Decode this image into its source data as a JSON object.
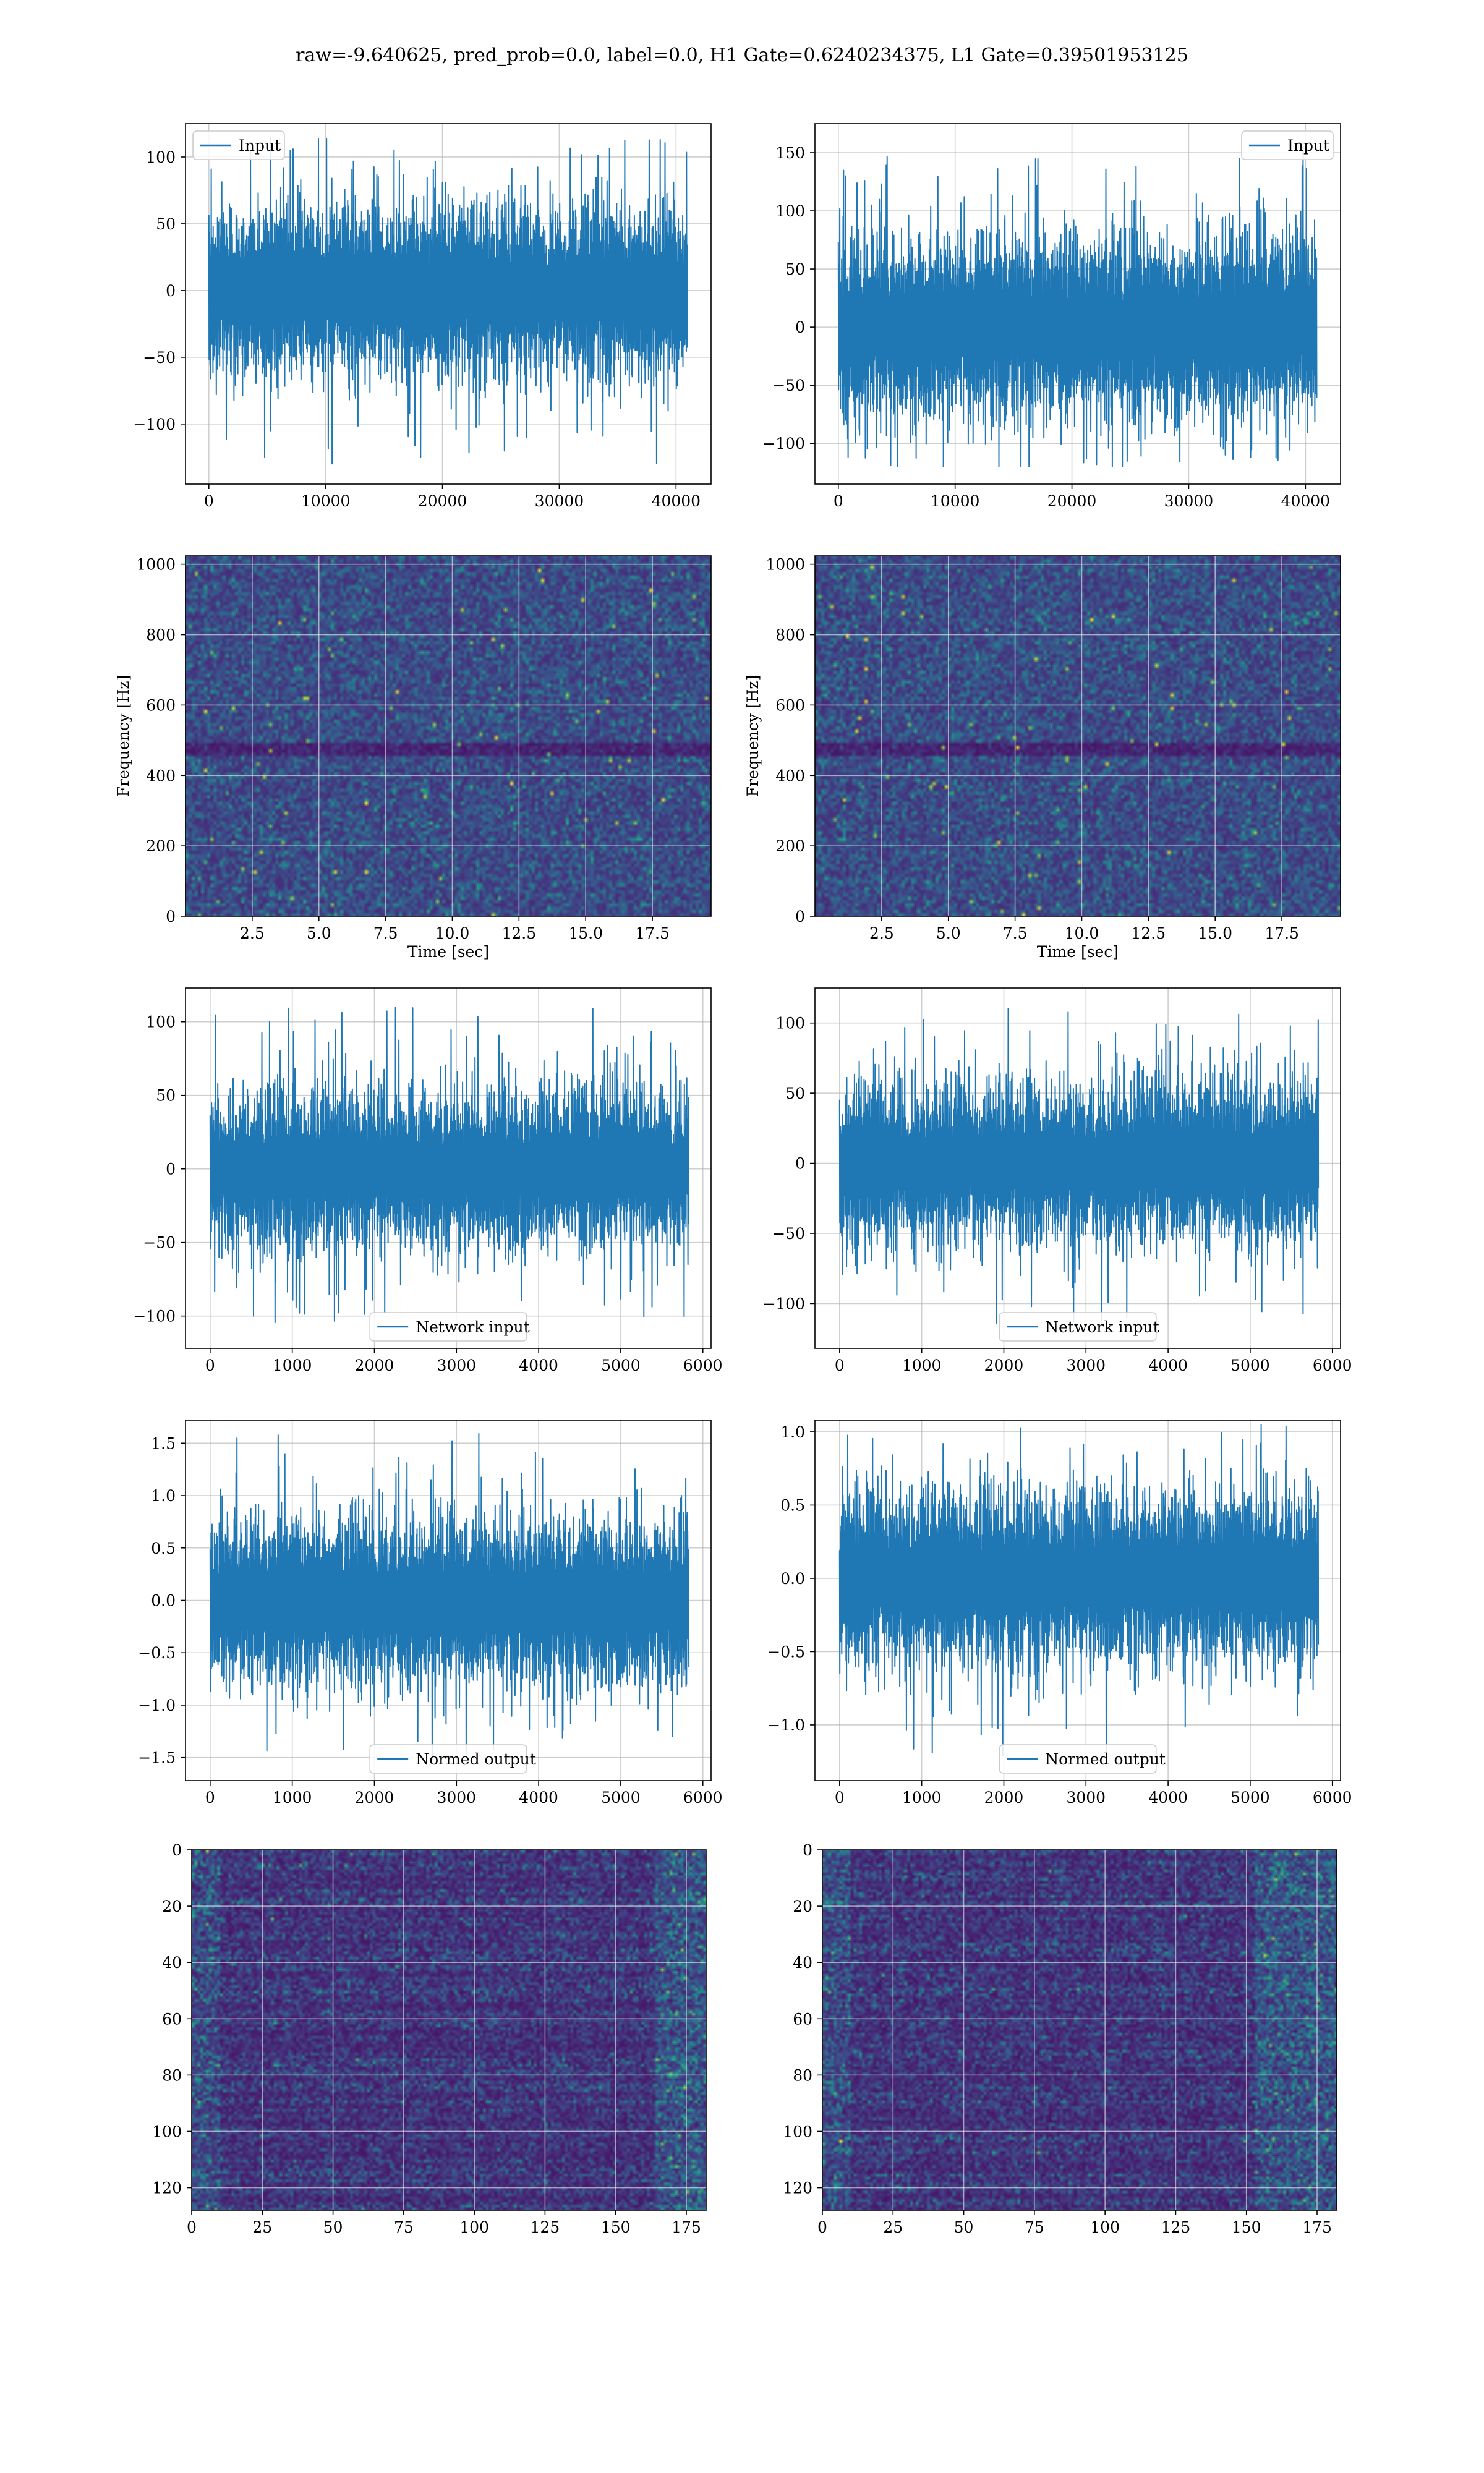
{
  "suptitle": "raw=-9.640625, pred_prob=0.0, label=0.0, H1 Gate=0.6240234375, L1 Gate=0.39501953125",
  "colors": {
    "line": "#1f77b4",
    "grid": "#b0b0b0",
    "viridis_low": "#440154",
    "viridis_high": "#fde725"
  },
  "chart_data": [
    {
      "id": "input-h1",
      "type": "line",
      "series": [
        {
          "name": "Input",
          "n_points": 40960,
          "approx_range": [
            -130,
            115
          ]
        }
      ],
      "xlim": [
        -2000,
        43000
      ],
      "ylim": [
        -145,
        125
      ],
      "xticks": [
        0,
        10000,
        20000,
        30000,
        40000
      ],
      "yticks": [
        -100,
        -50,
        0,
        50,
        100
      ],
      "legend": "upper left",
      "grid": true,
      "xlabel": "",
      "ylabel": ""
    },
    {
      "id": "input-l1",
      "type": "line",
      "series": [
        {
          "name": "Input",
          "n_points": 40960,
          "approx_range": [
            -120,
            160
          ]
        }
      ],
      "xlim": [
        -2000,
        43000
      ],
      "ylim": [
        -135,
        175
      ],
      "xticks": [
        0,
        10000,
        20000,
        30000,
        40000
      ],
      "yticks": [
        -100,
        -50,
        0,
        50,
        100,
        150
      ],
      "legend": "upper right",
      "grid": true,
      "xlabel": "",
      "ylabel": ""
    },
    {
      "id": "spectrogram-h1",
      "type": "heatmap",
      "colormap": "viridis",
      "xlim": [
        0,
        19.7
      ],
      "ylim": [
        0,
        1024
      ],
      "xticks": [
        2.5,
        5.0,
        7.5,
        10.0,
        12.5,
        15.0,
        17.5
      ],
      "yticks": [
        0,
        200,
        400,
        600,
        800,
        1000
      ],
      "xlabel": "Time [sec]",
      "ylabel": "Frequency [Hz]",
      "grid": true
    },
    {
      "id": "spectrogram-l1",
      "type": "heatmap",
      "colormap": "viridis",
      "xlim": [
        0,
        19.7
      ],
      "ylim": [
        0,
        1024
      ],
      "xticks": [
        2.5,
        5.0,
        7.5,
        10.0,
        12.5,
        15.0,
        17.5
      ],
      "yticks": [
        0,
        200,
        400,
        600,
        800,
        1000
      ],
      "xlabel": "Time [sec]",
      "ylabel": "Frequency [Hz]",
      "grid": true
    },
    {
      "id": "network-input-h1",
      "type": "line",
      "series": [
        {
          "name": "Network input",
          "n_points": 5830,
          "approx_range": [
            -105,
            110
          ]
        }
      ],
      "xlim": [
        -300,
        6100
      ],
      "ylim": [
        -122,
        123
      ],
      "xticks": [
        0,
        1000,
        2000,
        3000,
        4000,
        5000,
        6000
      ],
      "yticks": [
        -100,
        -50,
        0,
        50,
        100
      ],
      "legend": "lower center",
      "grid": true,
      "xlabel": "",
      "ylabel": ""
    },
    {
      "id": "network-input-l1",
      "type": "line",
      "series": [
        {
          "name": "Network input",
          "n_points": 5830,
          "approx_range": [
            -118,
            112
          ]
        }
      ],
      "xlim": [
        -300,
        6100
      ],
      "ylim": [
        -132,
        125
      ],
      "xticks": [
        0,
        1000,
        2000,
        3000,
        4000,
        5000,
        6000
      ],
      "yticks": [
        -100,
        -50,
        0,
        50,
        100
      ],
      "legend": "lower center",
      "grid": true,
      "xlabel": "",
      "ylabel": ""
    },
    {
      "id": "normed-output-h1",
      "type": "line",
      "series": [
        {
          "name": "Normed output",
          "n_points": 5830,
          "approx_range": [
            -1.55,
            1.6
          ]
        }
      ],
      "xlim": [
        -300,
        6100
      ],
      "ylim": [
        -1.72,
        1.72
      ],
      "xticks": [
        0,
        1000,
        2000,
        3000,
        4000,
        5000,
        6000
      ],
      "yticks": [
        -1.5,
        -1.0,
        -0.5,
        0.0,
        0.5,
        1.0,
        1.5
      ],
      "legend": "lower center",
      "grid": true,
      "xlabel": "",
      "ylabel": ""
    },
    {
      "id": "normed-output-l1",
      "type": "line",
      "series": [
        {
          "name": "Normed output",
          "n_points": 5830,
          "approx_range": [
            -1.22,
            1.05
          ]
        }
      ],
      "xlim": [
        -300,
        6100
      ],
      "ylim": [
        -1.38,
        1.08
      ],
      "xticks": [
        0,
        1000,
        2000,
        3000,
        4000,
        5000,
        6000
      ],
      "yticks": [
        -1.0,
        -0.5,
        0.0,
        0.5,
        1.0
      ],
      "legend": "lower center",
      "grid": true,
      "xlabel": "",
      "ylabel": ""
    },
    {
      "id": "feature-map-h1",
      "type": "heatmap",
      "colormap": "viridis",
      "xlim": [
        0,
        182
      ],
      "ylim": [
        128,
        0
      ],
      "xticks": [
        0,
        25,
        50,
        75,
        100,
        125,
        150,
        175
      ],
      "yticks": [
        0,
        20,
        40,
        60,
        80,
        100,
        120
      ],
      "grid": true,
      "xlabel": "",
      "ylabel": ""
    },
    {
      "id": "feature-map-l1",
      "type": "heatmap",
      "colormap": "viridis",
      "xlim": [
        0,
        182
      ],
      "ylim": [
        128,
        0
      ],
      "xticks": [
        0,
        25,
        50,
        75,
        100,
        125,
        150,
        175
      ],
      "yticks": [
        0,
        20,
        40,
        60,
        80,
        100,
        120
      ],
      "grid": true,
      "xlabel": "",
      "ylabel": ""
    }
  ]
}
